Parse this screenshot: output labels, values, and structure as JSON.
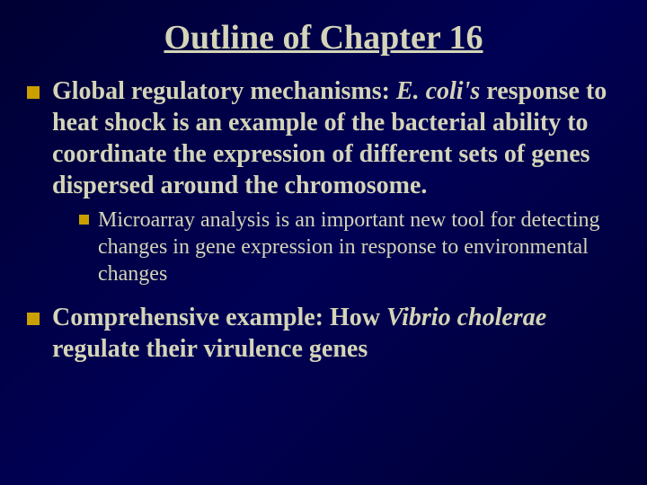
{
  "colors": {
    "bullet": "#c9a000",
    "text": "#d4d4b8",
    "bg_start": "#000033",
    "bg_mid": "#000055"
  },
  "title": "Outline of Chapter 16",
  "b1_lead": "Global regulatory mechanisms:  ",
  "b1_italic": "E. coli's",
  "b1_rest": " response to heat shock is an example of the bacterial ability to coordinate the expression of different sets of genes dispersed around the chromosome.",
  "b1a": "Microarray analysis is an important new tool for detecting changes in gene expression in response to environmental changes",
  "b2_lead": "Comprehensive example:  How ",
  "b2_italic": "Vibrio cholerae",
  "b2_rest": " regulate their virulence genes"
}
